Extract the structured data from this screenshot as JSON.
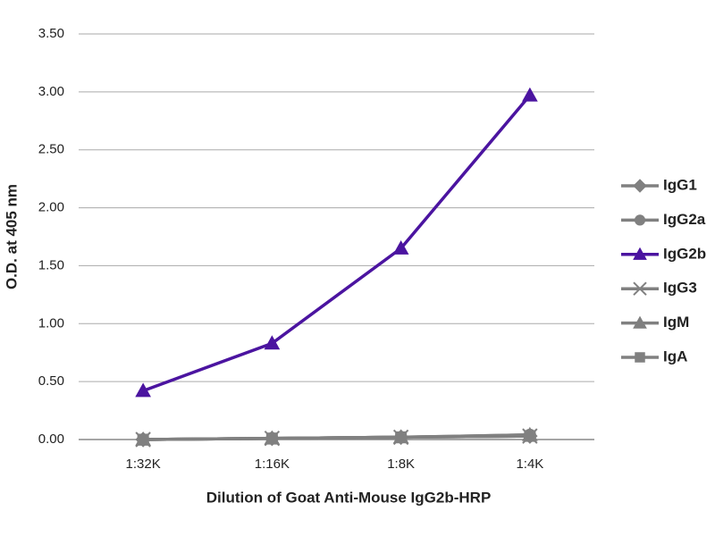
{
  "chart_data": {
    "type": "line",
    "x_label": "Dilution of Goat Anti-Mouse IgG2b-HRP",
    "y_label": "O.D. at 405 nm",
    "categories": [
      "1:32K",
      "1:16K",
      "1:8K",
      "1:4K"
    ],
    "series": [
      {
        "name": "IgG1",
        "color": "#808080",
        "marker": "diamond",
        "values": [
          0.0,
          0.01,
          0.02,
          0.03
        ]
      },
      {
        "name": "IgG2a",
        "color": "#808080",
        "marker": "circle",
        "values": [
          0.0,
          0.01,
          0.02,
          0.04
        ]
      },
      {
        "name": "IgG2b",
        "color": "#4b14a0",
        "marker": "triangle",
        "values": [
          0.42,
          0.83,
          1.65,
          2.97
        ]
      },
      {
        "name": "IgG3",
        "color": "#808080",
        "marker": "x",
        "values": [
          0.0,
          0.01,
          0.02,
          0.03
        ]
      },
      {
        "name": "IgM",
        "color": "#808080",
        "marker": "triangle",
        "values": [
          0.0,
          0.01,
          0.02,
          0.04
        ]
      },
      {
        "name": "IgA",
        "color": "#808080",
        "marker": "square",
        "values": [
          0.0,
          0.01,
          0.02,
          0.03
        ]
      }
    ],
    "ylim": [
      0,
      3.5
    ],
    "yticks": [
      {
        "value": 0,
        "label": "0.00"
      },
      {
        "value": 0.5,
        "label": "0.50"
      },
      {
        "value": 1,
        "label": "1.00"
      },
      {
        "value": 1.5,
        "label": "1.50"
      },
      {
        "value": 2,
        "label": "2.00"
      },
      {
        "value": 2.5,
        "label": "2.50"
      },
      {
        "value": 3,
        "label": "3.00"
      },
      {
        "value": 3.5,
        "label": "3.50"
      }
    ],
    "grid": true,
    "legend": "right"
  }
}
